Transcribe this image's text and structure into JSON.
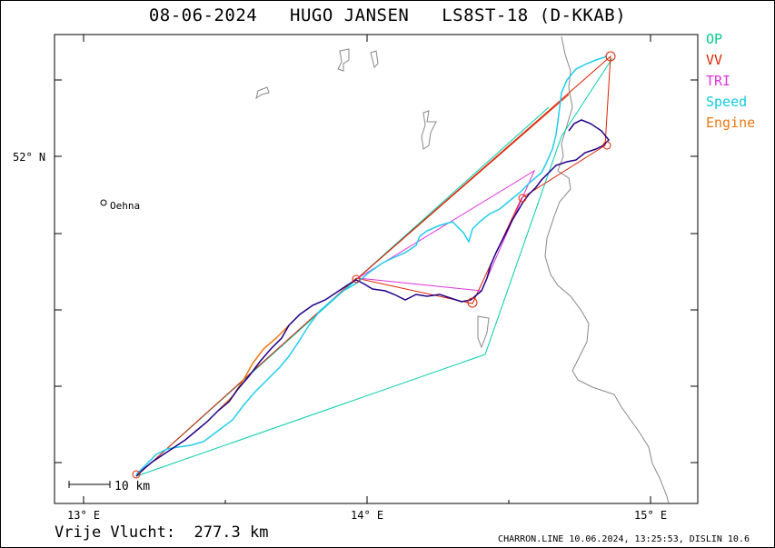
{
  "title": {
    "date": "08-06-2024",
    "pilot": "HUGO JANSEN",
    "glider": "LS8ST-18 (D-KKAB)"
  },
  "legend": [
    {
      "label": "OP",
      "color": "#00cc88"
    },
    {
      "label": "VV",
      "color": "#dd2200"
    },
    {
      "label": "TRI",
      "color": "#dd33dd"
    },
    {
      "label": "Speed",
      "color": "#11ccdd"
    },
    {
      "label": "Engine",
      "color": "#ee7711"
    }
  ],
  "axes": {
    "lon_ticks": [
      "13° E",
      "14° E",
      "15° E"
    ],
    "lat_ticks": [
      "52° N"
    ]
  },
  "places": [
    {
      "name": "Oehna"
    }
  ],
  "scale_bar": {
    "label": "10 km"
  },
  "distance": {
    "label": "Vrije Vlucht:",
    "value": "277.3 km"
  },
  "footer": "CHARRON.LINE 10.06.2024, 13:25:53, DISLIN 10.6",
  "colors": {
    "border": "#888888",
    "track_dark": "#220088",
    "track_light": "#22ccee"
  }
}
